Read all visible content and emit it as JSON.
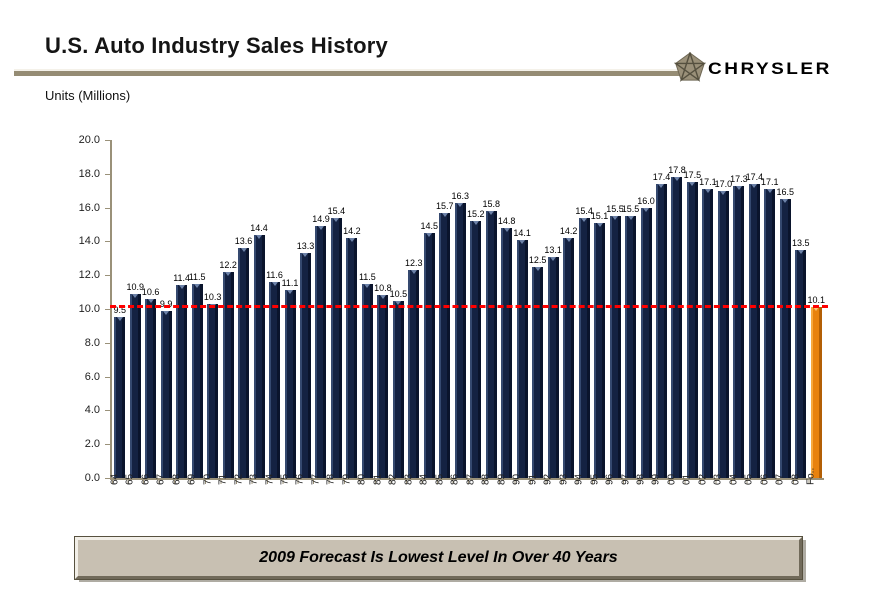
{
  "header": {
    "title": "U.S. Auto Industry Sales History",
    "units_label": "Units (Millions)",
    "brand": "CHRYSLER",
    "logo_color": "#9a9079"
  },
  "chart_data": {
    "type": "bar",
    "title": "U.S. Auto Industry Sales History",
    "ylabel": "Units (Millions)",
    "xlabel": "",
    "ylim": [
      0,
      20
    ],
    "ytick_step": 2,
    "ytick_labels": [
      "20.0",
      "18.0",
      "16.0",
      "14.0",
      "12.0",
      "10.0",
      "8.0",
      "6.0",
      "4.0",
      "2.0",
      "0.0"
    ],
    "grid": false,
    "legend": false,
    "categories": [
      "64",
      "65",
      "66",
      "67",
      "68",
      "69",
      "70",
      "71",
      "72",
      "73",
      "74",
      "75",
      "76",
      "77",
      "78",
      "79",
      "80",
      "81",
      "82",
      "83",
      "84",
      "85",
      "86",
      "87",
      "88",
      "89",
      "90",
      "91",
      "92",
      "93",
      "94",
      "95",
      "96",
      "97",
      "98",
      "99",
      "00",
      "01",
      "02",
      "03",
      "04",
      "05",
      "06",
      "07",
      "08",
      "Fo.."
    ],
    "values": [
      9.5,
      10.9,
      10.6,
      9.9,
      11.4,
      11.5,
      10.3,
      12.2,
      13.6,
      14.4,
      11.6,
      11.1,
      13.3,
      14.9,
      15.4,
      14.2,
      11.5,
      10.8,
      10.5,
      12.3,
      14.5,
      15.7,
      16.3,
      15.2,
      15.8,
      14.8,
      14.1,
      12.5,
      13.1,
      14.2,
      15.4,
      15.1,
      15.5,
      15.5,
      16.0,
      17.4,
      17.8,
      17.5,
      17.1,
      17.0,
      17.3,
      17.4,
      17.1,
      16.5,
      13.5,
      10.1
    ],
    "forecast_index": 45,
    "bar_color": "#142242",
    "forecast_bar_color": "#e8820e",
    "axis_color": "#9a9179",
    "reference_line": {
      "value": 10.1,
      "color": "#ff0000",
      "style": "dashed"
    }
  },
  "footer": {
    "banner_text": "2009 Forecast Is Lowest Level In Over 40 Years",
    "banner_bg": "#c8c0b2"
  }
}
